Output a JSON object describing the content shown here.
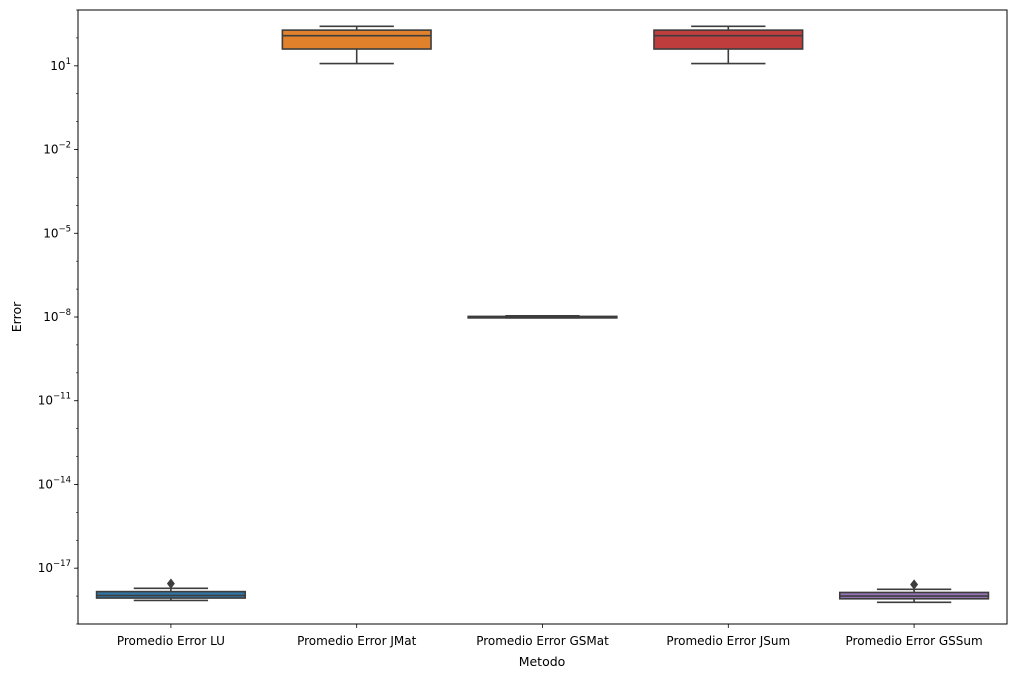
{
  "chart_data": {
    "type": "box",
    "xlabel": "Metodo",
    "ylabel": "Error",
    "yscale": "log",
    "ylim": [
      1e-19,
      1000.0
    ],
    "yticks": [
      {
        "exp": 1,
        "base": "10",
        "sup": "1"
      },
      {
        "exp": -2,
        "base": "10",
        "sup": "−2"
      },
      {
        "exp": -5,
        "base": "10",
        "sup": "−5"
      },
      {
        "exp": -8,
        "base": "10",
        "sup": "−8"
      },
      {
        "exp": -11,
        "base": "10",
        "sup": "−11"
      },
      {
        "exp": -14,
        "base": "10",
        "sup": "−14"
      },
      {
        "exp": -17,
        "base": "10",
        "sup": "−17"
      }
    ],
    "categories": [
      "Promedio Error LU",
      "Promedio Error JMat",
      "Promedio Error GSMat",
      "Promedio Error JSum",
      "Promedio Error GSSum"
    ],
    "boxes": [
      {
        "name": "Promedio Error LU",
        "color": "#3274a1",
        "whislo": 7e-19,
        "q1": 8.5e-19,
        "median": 1.05e-18,
        "q3": 1.45e-18,
        "whishi": 1.9e-18,
        "fliers": [
          2.8e-18
        ]
      },
      {
        "name": "Promedio Error JMat",
        "color": "#e1812c",
        "whislo": 12,
        "q1": 40,
        "median": 120,
        "q3": 190,
        "whishi": 260,
        "fliers": []
      },
      {
        "name": "Promedio Error GSMat",
        "color": "#3a923a",
        "whislo": 9.3e-09,
        "q1": 9.6e-09,
        "median": 1e-08,
        "q3": 1.05e-08,
        "whishi": 1.1e-08,
        "fliers": []
      },
      {
        "name": "Promedio Error JSum",
        "color": "#c03d3e",
        "whislo": 12,
        "q1": 40,
        "median": 120,
        "q3": 190,
        "whishi": 260,
        "fliers": []
      },
      {
        "name": "Promedio Error GSSum",
        "color": "#9372b2",
        "whislo": 6e-19,
        "q1": 8e-19,
        "median": 1e-18,
        "q3": 1.35e-18,
        "whishi": 1.75e-18,
        "fliers": [
          2.6e-18
        ]
      }
    ]
  }
}
